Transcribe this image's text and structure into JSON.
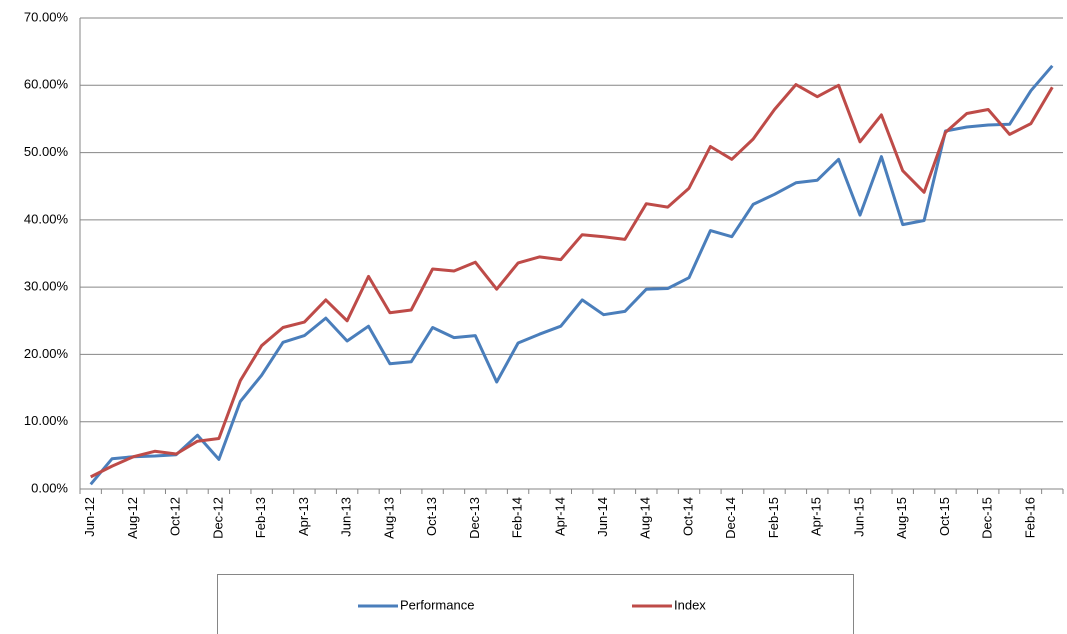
{
  "chart_data": {
    "type": "line",
    "categories": [
      "Jun-12",
      null,
      "Aug-12",
      null,
      "Oct-12",
      null,
      "Dec-12",
      null,
      "Feb-13",
      null,
      "Apr-13",
      null,
      "Jun-13",
      null,
      "Aug-13",
      null,
      "Oct-13",
      null,
      "Dec-13",
      null,
      "Feb-14",
      null,
      "Apr-14",
      null,
      "Jun-14",
      null,
      "Aug-14",
      null,
      "Oct-14",
      null,
      "Dec-14",
      null,
      "Feb-15",
      null,
      "Apr-15",
      null,
      "Jun-15",
      null,
      "Aug-15",
      null,
      "Oct-15",
      null,
      "Dec-15",
      null,
      "Feb-16",
      null
    ],
    "series": [
      {
        "name": "Performance",
        "color": "#4a7ebb",
        "values": [
          0.7,
          4.5,
          4.8,
          4.9,
          5.1,
          8.0,
          4.4,
          13.0,
          16.9,
          21.8,
          22.8,
          25.4,
          22.0,
          24.2,
          18.6,
          18.9,
          24.0,
          22.5,
          22.8,
          15.9,
          21.7,
          23.0,
          24.2,
          28.1,
          25.9,
          26.4,
          29.7,
          29.8,
          31.4,
          38.4,
          37.5,
          42.3,
          43.8,
          45.5,
          45.9,
          49.0,
          40.7,
          49.4,
          39.3,
          39.9,
          53.2,
          53.8,
          54.1,
          54.2,
          59.2,
          62.9
        ]
      },
      {
        "name": "Index",
        "color": "#be4b48",
        "values": [
          1.8,
          3.4,
          4.8,
          5.6,
          5.2,
          7.1,
          7.5,
          16.1,
          21.3,
          24.0,
          24.8,
          28.1,
          25.0,
          31.6,
          26.2,
          26.6,
          32.7,
          32.4,
          33.7,
          29.7,
          33.6,
          34.5,
          34.1,
          37.8,
          37.5,
          37.1,
          42.4,
          41.9,
          44.7,
          50.9,
          49.0,
          52.0,
          56.4,
          60.1,
          58.3,
          60.0,
          51.6,
          55.6,
          47.3,
          44.1,
          53.0,
          55.8,
          56.4,
          52.7,
          54.3,
          59.7
        ]
      }
    ],
    "ylim": [
      0,
      70
    ],
    "yticks": [
      {
        "value": 0,
        "label": "0.00%"
      },
      {
        "value": 10,
        "label": "10.00%"
      },
      {
        "value": 20,
        "label": "20.00%"
      },
      {
        "value": 30,
        "label": "30.00%"
      },
      {
        "value": 40,
        "label": "40.00%"
      },
      {
        "value": 50,
        "label": "50.00%"
      },
      {
        "value": 60,
        "label": "60.00%"
      },
      {
        "value": 70,
        "label": "70.00%"
      }
    ],
    "grid": true,
    "legend": "bottom"
  }
}
